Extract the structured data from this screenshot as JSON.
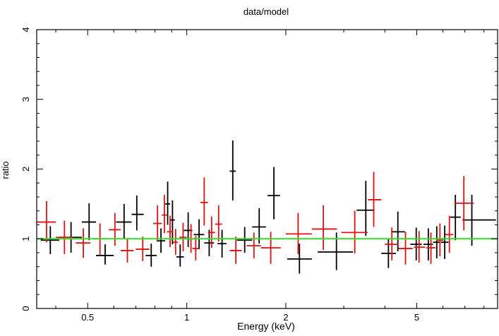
{
  "chart_data": {
    "type": "scatter",
    "title": "data/model",
    "xlabel": "Energy (keV)",
    "ylabel": "ratio",
    "x_scale": "log",
    "xlim": [
      0.35,
      8.8
    ],
    "ylim": [
      0,
      4
    ],
    "x_ticks": [
      0.5,
      1,
      2,
      5
    ],
    "x_tick_labels": [
      "0.5",
      "1",
      "2",
      "5"
    ],
    "y_ticks": [
      0,
      1,
      2,
      3,
      4
    ],
    "y_tick_labels": [
      "0",
      "1",
      "2",
      "3",
      "4"
    ],
    "reference_line": {
      "y": 1,
      "color": "#33dd22"
    },
    "series": [
      {
        "name": "black",
        "color": "#000000",
        "points": [
          {
            "x": 0.385,
            "xlo": 0.36,
            "xhi": 0.41,
            "y": 0.98,
            "ylo": 0.78,
            "yhi": 1.18
          },
          {
            "x": 0.445,
            "xlo": 0.41,
            "xhi": 0.48,
            "y": 1.02,
            "ylo": 0.8,
            "yhi": 1.24
          },
          {
            "x": 0.505,
            "xlo": 0.48,
            "xhi": 0.53,
            "y": 1.24,
            "ylo": 0.98,
            "yhi": 1.51
          },
          {
            "x": 0.565,
            "xlo": 0.53,
            "xhi": 0.6,
            "y": 0.76,
            "ylo": 0.63,
            "yhi": 0.92
          },
          {
            "x": 0.645,
            "xlo": 0.61,
            "xhi": 0.68,
            "y": 1.24,
            "ylo": 1.0,
            "yhi": 1.5
          },
          {
            "x": 0.705,
            "xlo": 0.68,
            "xhi": 0.74,
            "y": 1.35,
            "ylo": 1.12,
            "yhi": 1.62
          },
          {
            "x": 0.78,
            "xlo": 0.75,
            "xhi": 0.81,
            "y": 0.76,
            "ylo": 0.6,
            "yhi": 0.93
          },
          {
            "x": 0.835,
            "xlo": 0.81,
            "xhi": 0.86,
            "y": 0.97,
            "ylo": 0.8,
            "yhi": 1.15
          },
          {
            "x": 0.875,
            "xlo": 0.86,
            "xhi": 0.89,
            "y": 1.5,
            "ylo": 1.2,
            "yhi": 1.82
          },
          {
            "x": 0.905,
            "xlo": 0.89,
            "xhi": 0.92,
            "y": 1.27,
            "ylo": 0.92,
            "yhi": 1.55
          },
          {
            "x": 0.955,
            "xlo": 0.93,
            "xhi": 0.98,
            "y": 0.74,
            "ylo": 0.6,
            "yhi": 0.92
          },
          {
            "x": 1.01,
            "xlo": 0.98,
            "xhi": 1.04,
            "y": 1.12,
            "ylo": 0.88,
            "yhi": 1.38
          },
          {
            "x": 1.09,
            "xlo": 1.05,
            "xhi": 1.13,
            "y": 1.06,
            "ylo": 0.85,
            "yhi": 1.28
          },
          {
            "x": 1.17,
            "xlo": 1.13,
            "xhi": 1.21,
            "y": 0.94,
            "ylo": 0.75,
            "yhi": 1.13
          },
          {
            "x": 1.28,
            "xlo": 1.24,
            "xhi": 1.32,
            "y": 0.93,
            "ylo": 0.73,
            "yhi": 1.13
          },
          {
            "x": 1.38,
            "xlo": 1.35,
            "xhi": 1.41,
            "y": 1.97,
            "ylo": 1.55,
            "yhi": 2.41
          },
          {
            "x": 1.5,
            "xlo": 1.42,
            "xhi": 1.58,
            "y": 0.98,
            "ylo": 0.8,
            "yhi": 1.17
          },
          {
            "x": 1.66,
            "xlo": 1.58,
            "xhi": 1.74,
            "y": 1.17,
            "ylo": 0.93,
            "yhi": 1.44
          },
          {
            "x": 1.84,
            "xlo": 1.76,
            "xhi": 1.92,
            "y": 1.62,
            "ylo": 1.28,
            "yhi": 2.03
          },
          {
            "x": 2.2,
            "xlo": 2.02,
            "xhi": 2.4,
            "y": 0.71,
            "ylo": 0.5,
            "yhi": 0.93
          },
          {
            "x": 2.85,
            "xlo": 2.5,
            "xhi": 3.2,
            "y": 0.81,
            "ylo": 0.55,
            "yhi": 1.09
          },
          {
            "x": 3.5,
            "xlo": 3.28,
            "xhi": 3.72,
            "y": 1.41,
            "ylo": 1.04,
            "yhi": 1.83
          },
          {
            "x": 4.1,
            "xlo": 3.9,
            "xhi": 4.32,
            "y": 0.79,
            "ylo": 0.58,
            "yhi": 1.0
          },
          {
            "x": 4.38,
            "xlo": 4.18,
            "xhi": 4.6,
            "y": 1.1,
            "ylo": 0.82,
            "yhi": 1.39
          },
          {
            "x": 4.98,
            "xlo": 4.78,
            "xhi": 5.18,
            "y": 0.92,
            "ylo": 0.69,
            "yhi": 1.16
          },
          {
            "x": 5.42,
            "xlo": 5.24,
            "xhi": 5.6,
            "y": 0.92,
            "ylo": 0.69,
            "yhi": 1.15
          },
          {
            "x": 5.75,
            "xlo": 5.6,
            "xhi": 5.9,
            "y": 0.95,
            "ylo": 0.72,
            "yhi": 1.18
          },
          {
            "x": 6.08,
            "xlo": 5.92,
            "xhi": 6.24,
            "y": 0.95,
            "ylo": 0.71,
            "yhi": 1.19
          },
          {
            "x": 6.55,
            "xlo": 6.32,
            "xhi": 6.8,
            "y": 1.31,
            "ylo": 0.98,
            "yhi": 1.63
          },
          {
            "x": 7.35,
            "xlo": 6.88,
            "xhi": 8.7,
            "y": 1.27,
            "ylo": 0.9,
            "yhi": 1.63
          }
        ]
      },
      {
        "name": "red",
        "color": "#dd1111",
        "points": [
          {
            "x": 0.375,
            "xlo": 0.35,
            "xhi": 0.4,
            "y": 1.24,
            "ylo": 0.95,
            "yhi": 1.54
          },
          {
            "x": 0.425,
            "xlo": 0.4,
            "xhi": 0.45,
            "y": 1.02,
            "ylo": 0.78,
            "yhi": 1.26
          },
          {
            "x": 0.485,
            "xlo": 0.46,
            "xhi": 0.51,
            "y": 0.94,
            "ylo": 0.73,
            "yhi": 1.15
          },
          {
            "x": 0.545,
            "xlo": 0.52,
            "xhi": 0.57,
            "y": 1.0,
            "ylo": 0.77,
            "yhi": 1.22
          },
          {
            "x": 0.605,
            "xlo": 0.58,
            "xhi": 0.63,
            "y": 1.13,
            "ylo": 0.9,
            "yhi": 1.37
          },
          {
            "x": 0.66,
            "xlo": 0.63,
            "xhi": 0.69,
            "y": 0.83,
            "ylo": 0.66,
            "yhi": 1.0
          },
          {
            "x": 0.735,
            "xlo": 0.7,
            "xhi": 0.77,
            "y": 0.85,
            "ylo": 0.68,
            "yhi": 1.03
          },
          {
            "x": 0.815,
            "xlo": 0.79,
            "xhi": 0.84,
            "y": 1.22,
            "ylo": 0.97,
            "yhi": 1.48
          },
          {
            "x": 0.855,
            "xlo": 0.84,
            "xhi": 0.87,
            "y": 1.34,
            "ylo": 1.08,
            "yhi": 1.63
          },
          {
            "x": 0.89,
            "xlo": 0.87,
            "xhi": 0.91,
            "y": 1.1,
            "ylo": 0.88,
            "yhi": 1.33
          },
          {
            "x": 0.925,
            "xlo": 0.91,
            "xhi": 0.94,
            "y": 0.95,
            "ylo": 0.77,
            "yhi": 1.14
          },
          {
            "x": 0.975,
            "xlo": 0.95,
            "xhi": 1.0,
            "y": 1.02,
            "ylo": 0.82,
            "yhi": 1.23
          },
          {
            "x": 1.03,
            "xlo": 1.0,
            "xhi": 1.06,
            "y": 1.0,
            "ylo": 0.8,
            "yhi": 1.21
          },
          {
            "x": 1.065,
            "xlo": 1.04,
            "xhi": 1.09,
            "y": 0.86,
            "ylo": 0.69,
            "yhi": 1.04
          },
          {
            "x": 1.13,
            "xlo": 1.1,
            "xhi": 1.16,
            "y": 1.52,
            "ylo": 1.19,
            "yhi": 1.88
          },
          {
            "x": 1.19,
            "xlo": 1.16,
            "xhi": 1.22,
            "y": 1.09,
            "ylo": 0.87,
            "yhi": 1.32
          },
          {
            "x": 1.25,
            "xlo": 1.22,
            "xhi": 1.28,
            "y": 1.21,
            "ylo": 0.96,
            "yhi": 1.48
          },
          {
            "x": 1.41,
            "xlo": 1.35,
            "xhi": 1.47,
            "y": 0.83,
            "ylo": 0.64,
            "yhi": 1.03
          },
          {
            "x": 1.6,
            "xlo": 1.52,
            "xhi": 1.68,
            "y": 0.9,
            "ylo": 0.72,
            "yhi": 1.09
          },
          {
            "x": 1.8,
            "xlo": 1.68,
            "xhi": 1.93,
            "y": 0.87,
            "ylo": 0.64,
            "yhi": 1.1
          },
          {
            "x": 2.18,
            "xlo": 2.0,
            "xhi": 2.4,
            "y": 1.07,
            "ylo": 0.78,
            "yhi": 1.37
          },
          {
            "x": 2.6,
            "xlo": 2.4,
            "xhi": 2.86,
            "y": 1.14,
            "ylo": 0.84,
            "yhi": 1.48
          },
          {
            "x": 3.24,
            "xlo": 2.95,
            "xhi": 3.55,
            "y": 1.09,
            "ylo": 0.79,
            "yhi": 1.4
          },
          {
            "x": 3.7,
            "xlo": 3.55,
            "xhi": 3.9,
            "y": 1.56,
            "ylo": 1.17,
            "yhi": 1.96
          },
          {
            "x": 4.2,
            "xlo": 4.0,
            "xhi": 4.4,
            "y": 0.92,
            "ylo": 0.69,
            "yhi": 1.16
          },
          {
            "x": 4.62,
            "xlo": 4.4,
            "xhi": 4.86,
            "y": 0.86,
            "ylo": 0.63,
            "yhi": 1.1
          },
          {
            "x": 5.08,
            "xlo": 4.9,
            "xhi": 5.3,
            "y": 0.88,
            "ylo": 0.66,
            "yhi": 1.11
          },
          {
            "x": 5.52,
            "xlo": 5.34,
            "xhi": 5.7,
            "y": 0.87,
            "ylo": 0.64,
            "yhi": 1.09
          },
          {
            "x": 5.88,
            "xlo": 5.72,
            "xhi": 6.02,
            "y": 0.98,
            "ylo": 0.75,
            "yhi": 1.22
          },
          {
            "x": 6.28,
            "xlo": 6.1,
            "xhi": 6.46,
            "y": 1.06,
            "ylo": 0.8,
            "yhi": 1.33
          },
          {
            "x": 6.95,
            "xlo": 6.5,
            "xhi": 7.45,
            "y": 1.51,
            "ylo": 1.12,
            "yhi": 1.9
          }
        ]
      }
    ]
  }
}
